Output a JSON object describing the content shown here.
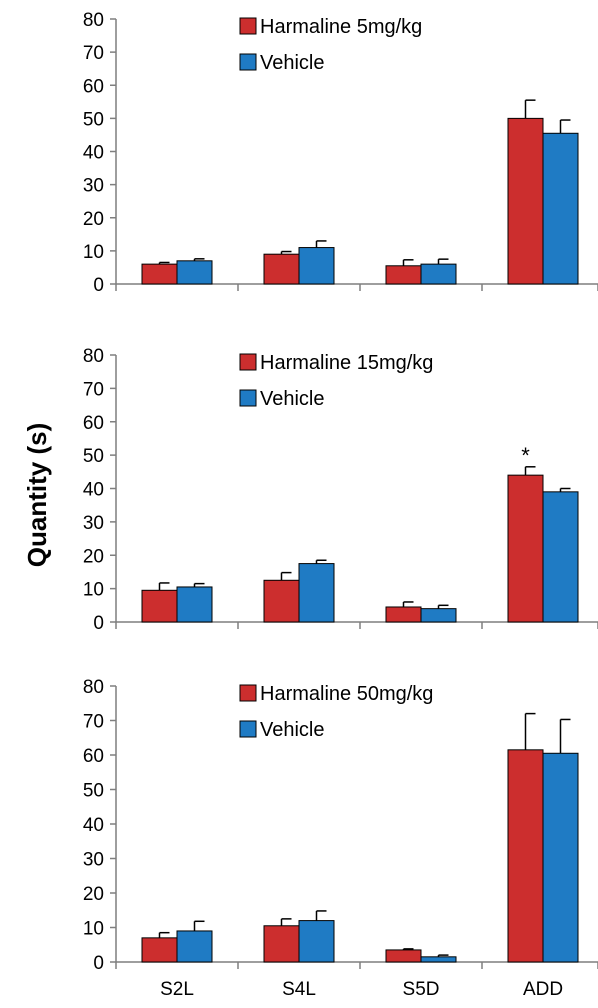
{
  "ylabel": "Quantity (s)",
  "colors": {
    "harmaline": "#cc2e2e",
    "vehicle": "#1f7bc4",
    "axis": "#7f7f7f",
    "error": "#000000"
  },
  "chart_data": [
    {
      "type": "bar",
      "categories": [
        "S2L",
        "S4L",
        "S5D",
        "ADD"
      ],
      "ylim": [
        0,
        80
      ],
      "yticks": [
        0,
        10,
        20,
        30,
        40,
        50,
        60,
        70,
        80
      ],
      "show_x_tick_labels": false,
      "legend_position": "top-center",
      "series": [
        {
          "name": "Harmaline 5mg/kg",
          "color_key": "harmaline",
          "values": [
            6,
            9,
            5.5,
            50
          ],
          "errors": [
            0.5,
            0.8,
            1.8,
            5.5
          ]
        },
        {
          "name": "Vehicle",
          "color_key": "vehicle",
          "values": [
            7,
            11,
            6,
            45.5
          ],
          "errors": [
            0.6,
            2,
            1.5,
            4
          ]
        }
      ],
      "annotations": []
    },
    {
      "type": "bar",
      "categories": [
        "S2L",
        "S4L",
        "S5D",
        "ADD"
      ],
      "ylim": [
        0,
        80
      ],
      "yticks": [
        0,
        10,
        20,
        30,
        40,
        50,
        60,
        70,
        80
      ],
      "show_x_tick_labels": false,
      "legend_position": "top-center",
      "series": [
        {
          "name": "Harmaline 15mg/kg",
          "color_key": "harmaline",
          "values": [
            9.5,
            12.5,
            4.5,
            44
          ],
          "errors": [
            2.2,
            2.3,
            1.5,
            2.5
          ]
        },
        {
          "name": "Vehicle",
          "color_key": "vehicle",
          "values": [
            10.5,
            17.5,
            4,
            39
          ],
          "errors": [
            1,
            1,
            1,
            1
          ]
        }
      ],
      "annotations": [
        {
          "category": "ADD",
          "series": 0,
          "text": "*"
        }
      ]
    },
    {
      "type": "bar",
      "categories": [
        "S2L",
        "S4L",
        "S5D",
        "ADD"
      ],
      "ylim": [
        0,
        80
      ],
      "yticks": [
        0,
        10,
        20,
        30,
        40,
        50,
        60,
        70,
        80
      ],
      "show_x_tick_labels": true,
      "legend_position": "top-center",
      "series": [
        {
          "name": "Harmaline 50mg/kg",
          "color_key": "harmaline",
          "values": [
            7,
            10.5,
            3.5,
            61.5
          ],
          "errors": [
            1.5,
            2,
            0.3,
            10.5
          ]
        },
        {
          "name": "Vehicle",
          "color_key": "vehicle",
          "values": [
            9,
            12,
            1.5,
            60.5
          ],
          "errors": [
            2.8,
            2.8,
            0.5,
            9.8
          ]
        }
      ],
      "annotations": []
    }
  ]
}
